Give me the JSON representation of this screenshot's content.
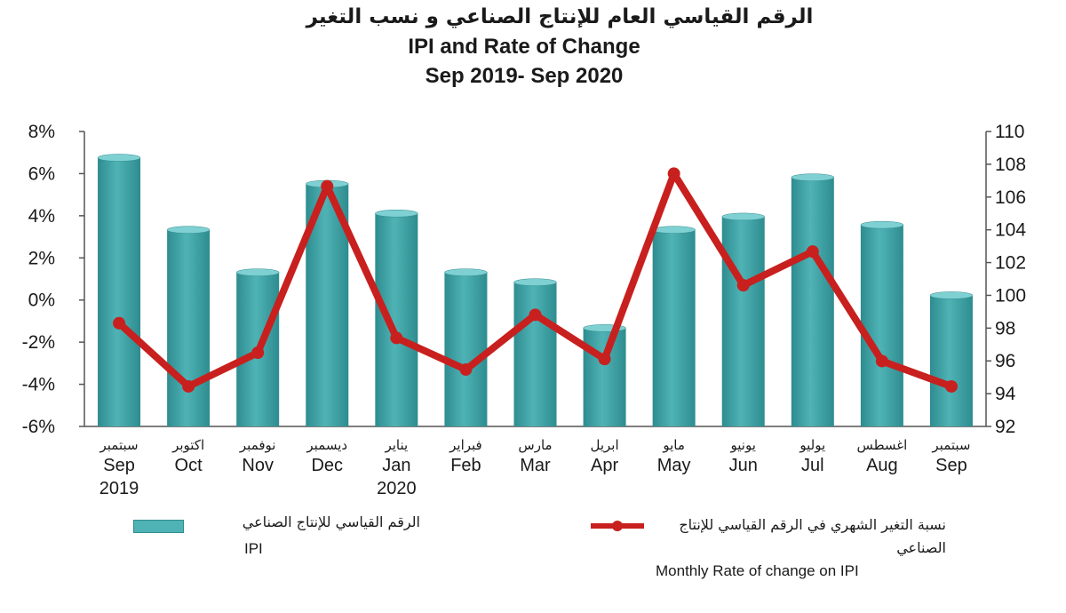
{
  "title_ar": "الرقم القياسي العام للإنتاج الصناعي و نسب التغير",
  "title_en": "IPI and Rate of Change",
  "subtitle": "Sep 2019- Sep 2020",
  "colors": {
    "bar": "#4fb3b5",
    "bar_dark": "#2e8c8f",
    "line": "#c8201e",
    "axis": "#555555"
  },
  "chart_data": {
    "type": "bar+line",
    "categories": [
      {
        "ar": "سبتمبر",
        "en": "Sep",
        "year": "2019"
      },
      {
        "ar": "اكتوبر",
        "en": "Oct",
        "year": ""
      },
      {
        "ar": "نوفمبر",
        "en": "Nov",
        "year": ""
      },
      {
        "ar": "ديسمبر",
        "en": "Dec",
        "year": ""
      },
      {
        "ar": "يناير",
        "en": "Jan",
        "year": "2020"
      },
      {
        "ar": "فبراير",
        "en": "Feb",
        "year": ""
      },
      {
        "ar": "مارس",
        "en": "Mar",
        "year": ""
      },
      {
        "ar": "ابريل",
        "en": "Apr",
        "year": ""
      },
      {
        "ar": "مايو",
        "en": "May",
        "year": ""
      },
      {
        "ar": "يونيو",
        "en": "Jun",
        "year": ""
      },
      {
        "ar": "يوليو",
        "en": "Jul",
        "year": ""
      },
      {
        "ar": "اغسطس",
        "en": "Aug",
        "year": ""
      },
      {
        "ar": "سبتمبر",
        "en": "Sep",
        "year": ""
      }
    ],
    "left_axis": {
      "ticks": [
        "8%",
        "6%",
        "4%",
        "2%",
        "0%",
        "-2%",
        "-4%",
        "-6%"
      ],
      "range": [
        -6,
        8
      ]
    },
    "right_axis": {
      "ticks": [
        "110",
        "108",
        "106",
        "104",
        "102",
        "100",
        "98",
        "96",
        "94",
        "92"
      ],
      "range": [
        92,
        110
      ]
    },
    "series": [
      {
        "name_ar": "الرقم القياسي للإنتاج الصناعي",
        "name_en": "IPI",
        "type": "bar",
        "axis": "right",
        "values": [
          108.4,
          104.0,
          101.4,
          106.8,
          105.0,
          101.4,
          100.8,
          98.0,
          104.0,
          104.8,
          107.2,
          104.3,
          100.0
        ]
      },
      {
        "name_ar": "نسبة التغير الشهري في الرقم القياسي للإنتاج الصناعي",
        "name_en": "Monthly Rate of change on IPI",
        "type": "line",
        "axis": "left",
        "values": [
          -1.1,
          -4.1,
          -2.5,
          5.4,
          -1.8,
          -3.3,
          -0.7,
          -2.8,
          6.0,
          0.7,
          2.3,
          -2.9,
          -4.1
        ]
      }
    ],
    "grid": false,
    "legend_position": "bottom"
  }
}
